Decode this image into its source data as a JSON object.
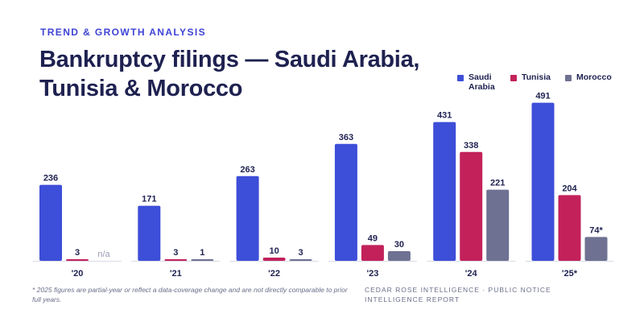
{
  "header": {
    "eyebrow": "TREND & GROWTH ANALYSIS",
    "title": "Bankruptcy filings — Saudi Arabia, Tunisia & Morocco"
  },
  "legend": [
    {
      "name": "Saudi Arabia",
      "color": "#3d4ed8"
    },
    {
      "name": "Tunisia",
      "color": "#c2215a"
    },
    {
      "name": "Morocco",
      "color": "#6e7191"
    }
  ],
  "chart_data": {
    "type": "bar",
    "categories": [
      "'20",
      "'21",
      "'22",
      "'23",
      "'24",
      "'25*"
    ],
    "series": [
      {
        "name": "Saudi Arabia",
        "color": "#3d4ed8",
        "values": [
          236,
          171,
          263,
          363,
          431,
          491
        ],
        "labels": [
          "236",
          "171",
          "263",
          "363",
          "431",
          "491"
        ]
      },
      {
        "name": "Tunisia",
        "color": "#c2215a",
        "values": [
          3,
          3,
          10,
          49,
          338,
          204
        ],
        "labels": [
          "3",
          "3",
          "10",
          "49",
          "338",
          "204"
        ]
      },
      {
        "name": "Morocco",
        "color": "#6e7191",
        "values": [
          null,
          1,
          3,
          30,
          221,
          74
        ],
        "labels": [
          "n/a",
          "1",
          "3",
          "30",
          "221",
          "74*"
        ]
      }
    ],
    "ylim": [
      0,
      500
    ],
    "grid": false,
    "legend_position": "top-right"
  },
  "footer": {
    "footnote": "* 2025 figures are partial-year or reflect a data-coverage change and are not directly comparable to prior full years.",
    "source": "CEDAR ROSE INTELLIGENCE · PUBLIC NOTICE INTELLIGENCE REPORT"
  }
}
